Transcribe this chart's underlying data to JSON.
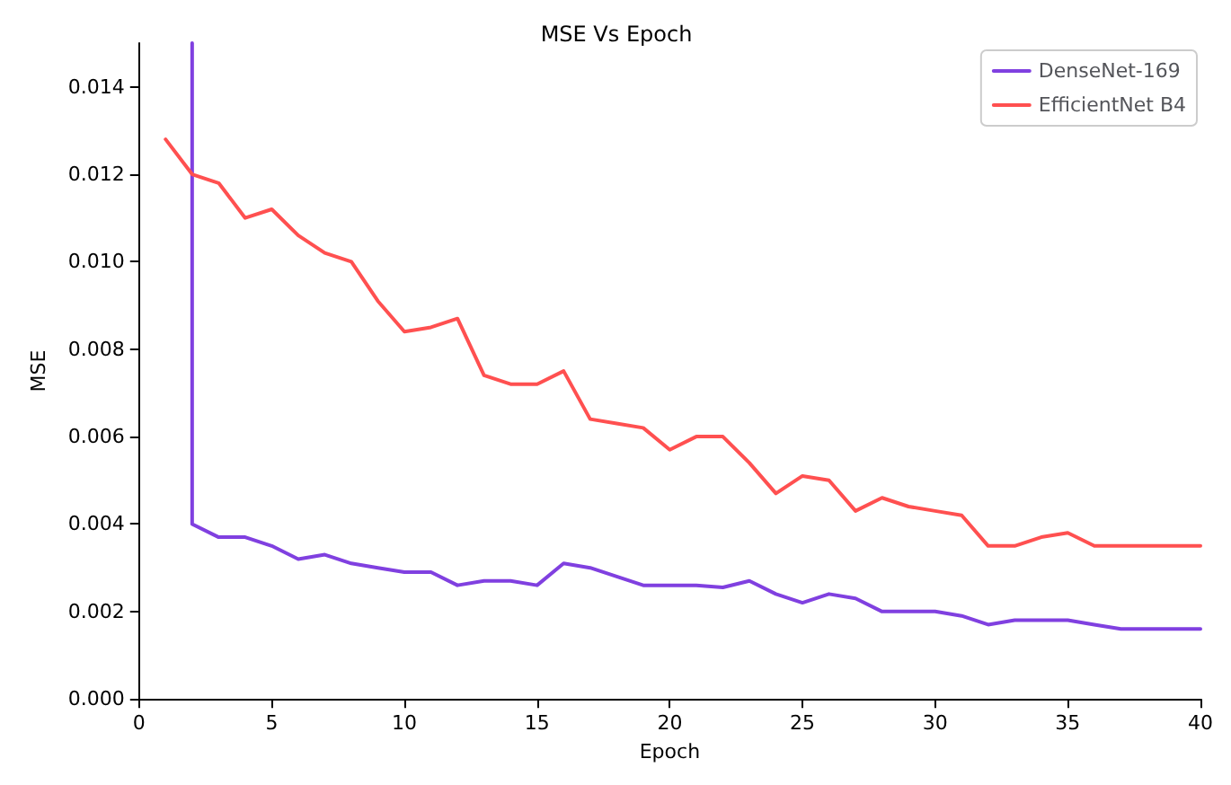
{
  "chart_data": {
    "type": "line",
    "title": "MSE Vs Epoch",
    "xlabel": "Epoch",
    "ylabel": "MSE",
    "xlim": [
      0,
      40
    ],
    "xticks": [
      0,
      5,
      10,
      15,
      20,
      25,
      30,
      35,
      40
    ],
    "ylim": [
      0,
      0.015
    ],
    "yticks": [
      {
        "value": 0,
        "label": "0.000"
      },
      {
        "value": 0.002,
        "label": "0.002"
      },
      {
        "value": 0.004,
        "label": "0.004"
      },
      {
        "value": 0.006,
        "label": "0.006"
      },
      {
        "value": 0.008,
        "label": "0.008"
      },
      {
        "value": 0.01,
        "label": "0.010"
      },
      {
        "value": 0.012,
        "label": "0.012"
      },
      {
        "value": 0.014,
        "label": "0.014"
      }
    ],
    "legend": "top right",
    "grid": false,
    "marker": "none",
    "line_style": "solid",
    "series": [
      {
        "name": "DenseNet-169",
        "color": "#8040e0",
        "x": [
          2,
          2,
          3,
          4,
          5,
          6,
          7,
          8,
          9,
          10,
          11,
          12,
          13,
          14,
          15,
          16,
          17,
          18,
          19,
          20,
          21,
          22,
          23,
          24,
          25,
          26,
          27,
          28,
          29,
          30,
          31,
          32,
          33,
          34,
          35,
          36,
          37,
          38,
          39,
          40
        ],
        "values": [
          0.015,
          0.004,
          0.0037,
          0.0037,
          0.0035,
          0.0032,
          0.0033,
          0.0031,
          0.003,
          0.0029,
          0.0029,
          0.0026,
          0.0027,
          0.0027,
          0.0026,
          0.0031,
          0.003,
          0.0028,
          0.0026,
          0.0026,
          0.0026,
          0.00255,
          0.0027,
          0.0024,
          0.0022,
          0.0024,
          0.0023,
          0.002,
          0.002,
          0.002,
          0.0019,
          0.0017,
          0.0018,
          0.0018,
          0.0018,
          0.0017,
          0.0016,
          0.0016,
          0.0016,
          0.0016
        ]
      },
      {
        "name": "EfficientNet B4",
        "color": "#ff5050",
        "x": [
          1,
          2,
          3,
          4,
          5,
          6,
          7,
          8,
          9,
          10,
          11,
          12,
          13,
          14,
          15,
          16,
          17,
          18,
          19,
          20,
          21,
          22,
          23,
          24,
          25,
          26,
          27,
          28,
          29,
          30,
          31,
          32,
          33,
          34,
          35,
          36,
          37,
          38,
          39,
          40
        ],
        "values": [
          0.0128,
          0.012,
          0.0118,
          0.011,
          0.0112,
          0.0106,
          0.0102,
          0.01,
          0.0091,
          0.0084,
          0.0085,
          0.0087,
          0.0074,
          0.0072,
          0.0072,
          0.0075,
          0.0064,
          0.0063,
          0.0062,
          0.0057,
          0.006,
          0.006,
          0.0054,
          0.0047,
          0.0051,
          0.005,
          0.0043,
          0.0046,
          0.0044,
          0.0043,
          0.0042,
          0.0035,
          0.0035,
          0.0037,
          0.0038,
          0.0035,
          0.0035,
          0.0035,
          0.0035,
          0.0035
        ]
      }
    ]
  }
}
